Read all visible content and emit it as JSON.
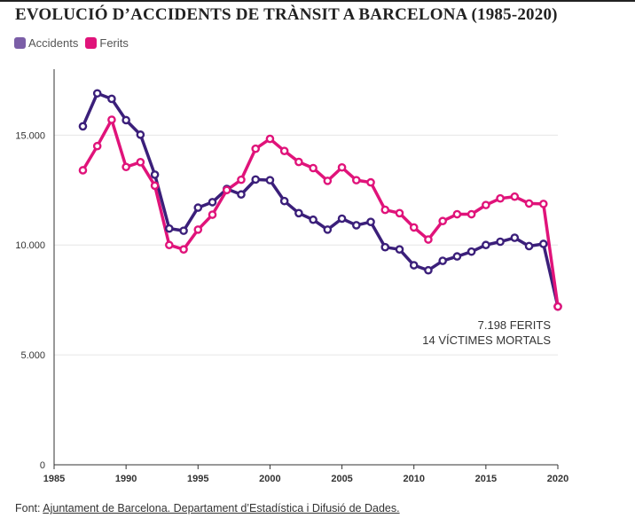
{
  "title": "EVOLUCIÓ D’ACCIDENTS DE TRÀNSIT A BARCELONA (1985-2020)",
  "legend": [
    {
      "name": "Accidents",
      "color": "#7b5ea7"
    },
    {
      "name": "Ferits",
      "color": "#e0137a"
    }
  ],
  "annotation": {
    "line1": "7.198 FERITS",
    "line2": "14 VÍCTIMES MORTALS"
  },
  "source": {
    "prefix": "Font: ",
    "link_text": "Ajuntament de Barcelona. Departament d’Estadística i Difusió de Dades."
  },
  "colors": {
    "accidents_line": "#3b1f7a",
    "ferits_line": "#e0137a"
  },
  "chart_data": {
    "type": "line",
    "title": "EVOLUCIÓ D’ACCIDENTS DE TRÀNSIT A BARCELONA (1985-2020)",
    "xlabel": "",
    "ylabel": "",
    "xlim": [
      1985,
      2020
    ],
    "ylim": [
      0,
      18000
    ],
    "x_ticks": [
      1985,
      1990,
      1995,
      2000,
      2005,
      2010,
      2015,
      2020
    ],
    "x_tick_labels": [
      "1985",
      "1990",
      "1995",
      "2000",
      "2005",
      "2010",
      "2015",
      "2020"
    ],
    "y_ticks": [
      0,
      5000,
      10000,
      15000
    ],
    "y_tick_labels": [
      "0",
      "5.000",
      "10.000",
      "15.000"
    ],
    "grid": true,
    "legend_position": "top-left",
    "x": [
      1987,
      1988,
      1989,
      1990,
      1991,
      1992,
      1993,
      1994,
      1995,
      1996,
      1997,
      1998,
      1999,
      2000,
      2001,
      2002,
      2003,
      2004,
      2005,
      2006,
      2007,
      2008,
      2009,
      2010,
      2011,
      2012,
      2013,
      2014,
      2015,
      2016,
      2017,
      2018,
      2019,
      2020
    ],
    "series": [
      {
        "name": "Accidents",
        "values": [
          15400,
          16900,
          16650,
          15680,
          15020,
          13200,
          10750,
          10650,
          11700,
          11950,
          12550,
          12300,
          12980,
          12950,
          12000,
          11450,
          11150,
          10700,
          11200,
          10900,
          11050,
          9900,
          9800,
          9080,
          8850,
          9280,
          9480,
          9700,
          10000,
          10150,
          10330,
          9950,
          10050,
          7198
        ]
      },
      {
        "name": "Ferits",
        "values": [
          13400,
          14500,
          15700,
          13550,
          13770,
          12700,
          10000,
          9800,
          10700,
          11380,
          12500,
          12970,
          14380,
          14830,
          14280,
          13780,
          13500,
          12920,
          13530,
          12950,
          12850,
          11600,
          11450,
          10800,
          10250,
          11090,
          11400,
          11400,
          11820,
          12120,
          12200,
          11890,
          11870,
          7198
        ]
      }
    ]
  }
}
